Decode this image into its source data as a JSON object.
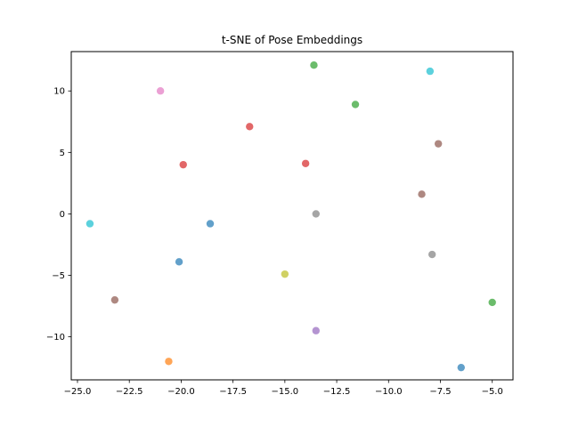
{
  "chart_data": {
    "type": "scatter",
    "title": "t-SNE of Pose Embeddings",
    "xlabel": "",
    "ylabel": "",
    "xlim": [
      -25.3,
      -4.0
    ],
    "ylim": [
      -13.5,
      13.2
    ],
    "xticks": [
      -25.0,
      -22.5,
      -20.0,
      -17.5,
      -15.0,
      -12.5,
      -10.0,
      -7.5,
      -5.0
    ],
    "xtick_labels": [
      "−25.0",
      "−22.5",
      "−20.0",
      "−17.5",
      "−15.0",
      "−12.5",
      "−10.0",
      "−7.5",
      "−5.0"
    ],
    "yticks": [
      -10,
      -5,
      0,
      5,
      10
    ],
    "ytick_labels": [
      "−10",
      "−5",
      "0",
      "5",
      "10"
    ],
    "grid": false,
    "points": [
      {
        "x": -13.6,
        "y": 12.1,
        "color": "#2ca02c"
      },
      {
        "x": -8.0,
        "y": 11.6,
        "color": "#17becf"
      },
      {
        "x": -21.0,
        "y": 10.0,
        "color": "#e377c2"
      },
      {
        "x": -11.6,
        "y": 8.9,
        "color": "#2ca02c"
      },
      {
        "x": -16.7,
        "y": 7.1,
        "color": "#d62728"
      },
      {
        "x": -7.6,
        "y": 5.7,
        "color": "#8c564b"
      },
      {
        "x": -19.9,
        "y": 4.0,
        "color": "#d62728"
      },
      {
        "x": -14.0,
        "y": 4.1,
        "color": "#d62728"
      },
      {
        "x": -8.4,
        "y": 1.6,
        "color": "#8c564b"
      },
      {
        "x": -13.5,
        "y": 0.0,
        "color": "#7f7f7f"
      },
      {
        "x": -24.4,
        "y": -0.8,
        "color": "#17becf"
      },
      {
        "x": -18.6,
        "y": -0.8,
        "color": "#1f77b4"
      },
      {
        "x": -7.9,
        "y": -3.3,
        "color": "#7f7f7f"
      },
      {
        "x": -20.1,
        "y": -3.9,
        "color": "#1f77b4"
      },
      {
        "x": -15.0,
        "y": -4.9,
        "color": "#bcbd22"
      },
      {
        "x": -23.2,
        "y": -7.0,
        "color": "#8c564b"
      },
      {
        "x": -5.0,
        "y": -7.2,
        "color": "#2ca02c"
      },
      {
        "x": -13.5,
        "y": -9.5,
        "color": "#9467bd"
      },
      {
        "x": -20.6,
        "y": -12.0,
        "color": "#ff7f0e"
      },
      {
        "x": -6.5,
        "y": -12.5,
        "color": "#1f77b4"
      }
    ]
  }
}
